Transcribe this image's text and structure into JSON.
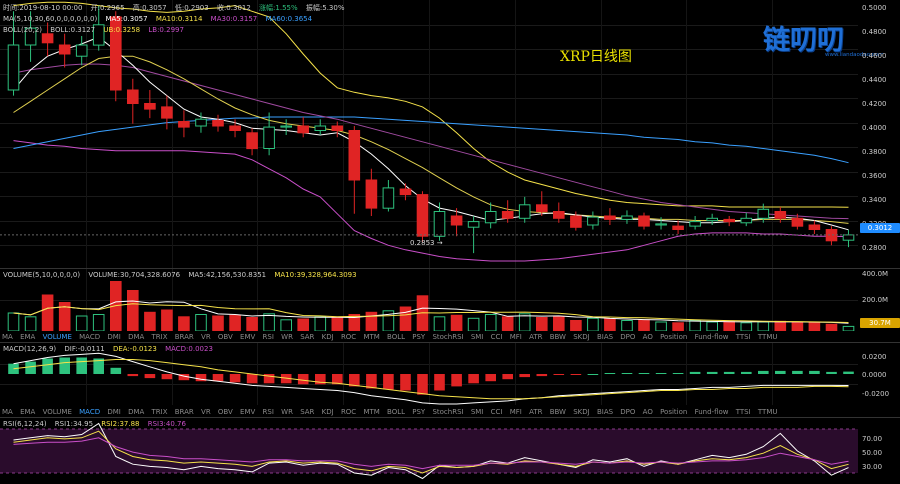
{
  "header": {
    "time": "时间:2019-08-10 00:00",
    "open": "开:0.2965",
    "high": "高:0.3057",
    "low": "低:0.2903",
    "close": "收:0.3012",
    "change_pct": "涨幅:1.55%",
    "amplitude": "振幅:5.30%"
  },
  "ma_line": {
    "label": "MA(5,10,30,60,0,0,0,0,0,0)",
    "ma5": "MA5:0.3057",
    "ma10": "MA10:0.3114",
    "ma30": "MA30:0.3157",
    "ma60": "MA60:0.3654"
  },
  "boll_line": {
    "label": "BOLL(20,2)",
    "boll": "BOLL:0.3127",
    "ub": "UB:0.3258",
    "lb": "LB:0.2997"
  },
  "chart_title": "XRP日线图",
  "logo": {
    "text": "链叨叨",
    "url": "www.liandaodao.com"
  },
  "price_axis": [
    "0.5000",
    "0.4800",
    "0.4600",
    "0.4400",
    "0.4200",
    "0.4000",
    "0.3800",
    "0.3600",
    "0.3400",
    "0.3200",
    "0.2800"
  ],
  "price_current": "0.3012",
  "low_marker": "0.2853 →",
  "volume_info": {
    "label": "VOLUME(5,10,0,0,0,0)",
    "volume": "VOLUME:30,704,328.6076",
    "ma5": "MA5:42,156,530.8351",
    "ma10": "MA10:39,328,964.3093"
  },
  "volume_axis": [
    "400.0M",
    "200.0M"
  ],
  "volume_current": "30.7M",
  "macd_info": {
    "label": "MACD(12,26,9)",
    "dif": "DIF:-0.0111",
    "dea": "DEA:-0.0123",
    "macd": "MACD:0.0023"
  },
  "macd_axis": [
    "0.0200",
    "0.0000",
    "-0.0200"
  ],
  "rsi_info": {
    "label": "RSI(6,12,24)",
    "rsi1": "RSI1:34.95",
    "rsi2": "RSI2:37.88",
    "rsi3": "RSI3:40.76"
  },
  "rsi_axis": [
    "70.00",
    "50.00",
    "30.00"
  ],
  "indicator_tabs_1": [
    "MA",
    "EMA",
    "VOLUME",
    "MACD",
    "DMI",
    "DMA",
    "TRIX",
    "BRAR",
    "VR",
    "OBV",
    "EMV",
    "RSI",
    "WR",
    "SAR",
    "KDJ",
    "ROC",
    "MTM",
    "BOLL",
    "PSY",
    "StochRSI",
    "SMI",
    "CCI",
    "MFI",
    "ATR",
    "BBW",
    "SKDJ",
    "BIAS",
    "DPO",
    "AO",
    "Position",
    "Fund-flow",
    "TTSI",
    "TTMU"
  ],
  "indicator_tabs_2": [
    "MA",
    "EMA",
    "VOLUME",
    "MACD",
    "DMI",
    "DMA",
    "TRIX",
    "BRAR",
    "VR",
    "OBV",
    "EMV",
    "RSI",
    "WR",
    "SAR",
    "KDJ",
    "ROC",
    "MTM",
    "BOLL",
    "PSY",
    "StochRSI",
    "SMI",
    "CCI",
    "MFI",
    "ATR",
    "BBW",
    "SKDJ",
    "BIAS",
    "DPO",
    "AO",
    "Position",
    "Fund-flow",
    "TTSI",
    "TTMU"
  ],
  "colors": {
    "up": "#2ec27e",
    "down": "#e02424",
    "ma5": "#ffffff",
    "ma10": "#f5e24a",
    "ma30": "#c94fc9",
    "ma60": "#3aa0ff",
    "current_badge": "#1f8cff",
    "volume_badge": "#d9a400"
  },
  "chart_data": {
    "type": "candlestick",
    "title": "XRP日线图",
    "ylim": [
      0.27,
      0.51
    ],
    "candles": [
      {
        "o": 0.43,
        "c": 0.47,
        "h": 0.5,
        "l": 0.425
      },
      {
        "o": 0.47,
        "c": 0.485,
        "h": 0.5,
        "l": 0.455
      },
      {
        "o": 0.48,
        "c": 0.472,
        "h": 0.49,
        "l": 0.46
      },
      {
        "o": 0.47,
        "c": 0.462,
        "h": 0.48,
        "l": 0.45
      },
      {
        "o": 0.46,
        "c": 0.47,
        "h": 0.478,
        "l": 0.452
      },
      {
        "o": 0.47,
        "c": 0.488,
        "h": 0.505,
        "l": 0.465
      },
      {
        "o": 0.495,
        "c": 0.43,
        "h": 0.5,
        "l": 0.42
      },
      {
        "o": 0.43,
        "c": 0.418,
        "h": 0.44,
        "l": 0.4
      },
      {
        "o": 0.418,
        "c": 0.413,
        "h": 0.43,
        "l": 0.405
      },
      {
        "o": 0.415,
        "c": 0.405,
        "h": 0.425,
        "l": 0.395
      },
      {
        "o": 0.402,
        "c": 0.397,
        "h": 0.412,
        "l": 0.388
      },
      {
        "o": 0.398,
        "c": 0.404,
        "h": 0.41,
        "l": 0.392
      },
      {
        "o": 0.403,
        "c": 0.398,
        "h": 0.408,
        "l": 0.393
      },
      {
        "o": 0.398,
        "c": 0.394,
        "h": 0.404,
        "l": 0.388
      },
      {
        "o": 0.392,
        "c": 0.378,
        "h": 0.396,
        "l": 0.372
      },
      {
        "o": 0.378,
        "c": 0.397,
        "h": 0.41,
        "l": 0.372
      },
      {
        "o": 0.397,
        "c": 0.398,
        "h": 0.404,
        "l": 0.39
      },
      {
        "o": 0.398,
        "c": 0.392,
        "h": 0.406,
        "l": 0.388
      },
      {
        "o": 0.394,
        "c": 0.398,
        "h": 0.404,
        "l": 0.39
      },
      {
        "o": 0.398,
        "c": 0.394,
        "h": 0.402,
        "l": 0.388
      },
      {
        "o": 0.394,
        "c": 0.35,
        "h": 0.398,
        "l": 0.32
      },
      {
        "o": 0.35,
        "c": 0.325,
        "h": 0.36,
        "l": 0.318
      },
      {
        "o": 0.325,
        "c": 0.343,
        "h": 0.35,
        "l": 0.322
      },
      {
        "o": 0.342,
        "c": 0.337,
        "h": 0.347,
        "l": 0.332
      },
      {
        "o": 0.337,
        "c": 0.3,
        "h": 0.34,
        "l": 0.295
      },
      {
        "o": 0.3,
        "c": 0.322,
        "h": 0.33,
        "l": 0.296
      },
      {
        "o": 0.318,
        "c": 0.31,
        "h": 0.325,
        "l": 0.3
      },
      {
        "o": 0.308,
        "c": 0.313,
        "h": 0.318,
        "l": 0.285
      },
      {
        "o": 0.312,
        "c": 0.322,
        "h": 0.33,
        "l": 0.307
      },
      {
        "o": 0.322,
        "c": 0.316,
        "h": 0.332,
        "l": 0.312
      },
      {
        "o": 0.316,
        "c": 0.328,
        "h": 0.335,
        "l": 0.312
      },
      {
        "o": 0.328,
        "c": 0.322,
        "h": 0.34,
        "l": 0.318
      },
      {
        "o": 0.322,
        "c": 0.316,
        "h": 0.33,
        "l": 0.312
      },
      {
        "o": 0.318,
        "c": 0.308,
        "h": 0.322,
        "l": 0.305
      },
      {
        "o": 0.31,
        "c": 0.317,
        "h": 0.322,
        "l": 0.306
      },
      {
        "o": 0.318,
        "c": 0.315,
        "h": 0.325,
        "l": 0.31
      },
      {
        "o": 0.315,
        "c": 0.318,
        "h": 0.323,
        "l": 0.311
      },
      {
        "o": 0.318,
        "c": 0.309,
        "h": 0.321,
        "l": 0.306
      },
      {
        "o": 0.31,
        "c": 0.311,
        "h": 0.317,
        "l": 0.306
      },
      {
        "o": 0.309,
        "c": 0.306,
        "h": 0.314,
        "l": 0.302
      },
      {
        "o": 0.309,
        "c": 0.313,
        "h": 0.318,
        "l": 0.306
      },
      {
        "o": 0.314,
        "c": 0.316,
        "h": 0.32,
        "l": 0.31
      },
      {
        "o": 0.315,
        "c": 0.313,
        "h": 0.318,
        "l": 0.309
      },
      {
        "o": 0.312,
        "c": 0.316,
        "h": 0.321,
        "l": 0.309
      },
      {
        "o": 0.316,
        "c": 0.324,
        "h": 0.329,
        "l": 0.312
      },
      {
        "o": 0.322,
        "c": 0.316,
        "h": 0.326,
        "l": 0.312
      },
      {
        "o": 0.316,
        "c": 0.309,
        "h": 0.32,
        "l": 0.306
      },
      {
        "o": 0.31,
        "c": 0.306,
        "h": 0.314,
        "l": 0.302
      },
      {
        "o": 0.306,
        "c": 0.296,
        "h": 0.309,
        "l": 0.292
      },
      {
        "o": 0.2965,
        "c": 0.3012,
        "h": 0.3057,
        "l": 0.2903
      }
    ],
    "ma5": [
      0.43,
      0.448,
      0.46,
      0.466,
      0.471,
      0.477,
      0.465,
      0.452,
      0.437,
      0.425,
      0.413,
      0.406,
      0.404,
      0.401,
      0.396,
      0.395,
      0.394,
      0.392,
      0.39,
      0.392,
      0.384,
      0.373,
      0.36,
      0.345,
      0.333,
      0.325,
      0.322,
      0.318,
      0.314,
      0.316,
      0.318,
      0.32,
      0.321,
      0.319,
      0.317,
      0.316,
      0.315,
      0.315,
      0.314,
      0.313,
      0.312,
      0.312,
      0.313,
      0.314,
      0.316,
      0.317,
      0.316,
      0.314,
      0.31,
      0.3057
    ],
    "ma10": [
      0.41,
      0.42,
      0.43,
      0.44,
      0.45,
      0.458,
      0.46,
      0.46,
      0.455,
      0.448,
      0.44,
      0.431,
      0.422,
      0.414,
      0.408,
      0.403,
      0.4,
      0.398,
      0.396,
      0.394,
      0.39,
      0.384,
      0.377,
      0.369,
      0.361,
      0.352,
      0.343,
      0.335,
      0.328,
      0.324,
      0.322,
      0.321,
      0.32,
      0.319,
      0.318,
      0.317,
      0.316,
      0.316,
      0.315,
      0.315,
      0.314,
      0.314,
      0.314,
      0.314,
      0.315,
      0.315,
      0.315,
      0.314,
      0.313,
      0.3114
    ],
    "ma30": [
      0.445,
      0.448,
      0.45,
      0.452,
      0.453,
      0.453,
      0.452,
      0.45,
      0.446,
      0.442,
      0.438,
      0.434,
      0.43,
      0.426,
      0.422,
      0.418,
      0.414,
      0.41,
      0.407,
      0.404,
      0.4,
      0.396,
      0.392,
      0.388,
      0.384,
      0.38,
      0.376,
      0.372,
      0.368,
      0.364,
      0.36,
      0.356,
      0.352,
      0.348,
      0.344,
      0.34,
      0.336,
      0.333,
      0.33,
      0.328,
      0.326,
      0.324,
      0.322,
      0.321,
      0.32,
      0.319,
      0.318,
      0.317,
      0.316,
      0.3157
    ],
    "ma60": [
      0.378,
      0.381,
      0.384,
      0.387,
      0.39,
      0.393,
      0.395,
      0.397,
      0.399,
      0.401,
      0.402,
      0.403,
      0.404,
      0.405,
      0.405,
      0.406,
      0.406,
      0.406,
      0.406,
      0.406,
      0.406,
      0.405,
      0.404,
      0.403,
      0.402,
      0.401,
      0.4,
      0.399,
      0.398,
      0.397,
      0.396,
      0.395,
      0.394,
      0.393,
      0.392,
      0.391,
      0.39,
      0.388,
      0.387,
      0.386,
      0.384,
      0.383,
      0.381,
      0.38,
      0.378,
      0.376,
      0.374,
      0.372,
      0.369,
      0.3654
    ],
    "bb_ub": [
      0.505,
      0.507,
      0.508,
      0.508,
      0.507,
      0.505,
      0.503,
      0.502,
      0.5,
      0.499,
      0.5,
      0.502,
      0.503,
      0.505,
      0.5,
      0.495,
      0.48,
      0.462,
      0.445,
      0.432,
      0.428,
      0.425,
      0.423,
      0.42,
      0.415,
      0.405,
      0.392,
      0.378,
      0.366,
      0.357,
      0.35,
      0.346,
      0.342,
      0.338,
      0.335,
      0.332,
      0.33,
      0.329,
      0.328,
      0.327,
      0.327,
      0.327,
      0.326,
      0.326,
      0.326,
      0.326,
      0.326,
      0.326,
      0.326,
      0.3258
    ],
    "bb_lb": [
      0.385,
      0.383,
      0.381,
      0.38,
      0.378,
      0.377,
      0.376,
      0.376,
      0.376,
      0.376,
      0.376,
      0.375,
      0.374,
      0.373,
      0.368,
      0.36,
      0.352,
      0.342,
      0.335,
      0.32,
      0.305,
      0.298,
      0.292,
      0.288,
      0.285,
      0.282,
      0.28,
      0.279,
      0.278,
      0.278,
      0.278,
      0.279,
      0.28,
      0.282,
      0.284,
      0.286,
      0.288,
      0.292,
      0.296,
      0.3,
      0.302,
      0.303,
      0.303,
      0.303,
      0.302,
      0.302,
      0.301,
      0.3,
      0.3,
      0.2997
    ],
    "volume": [
      120,
      95,
      240,
      190,
      100,
      110,
      330,
      270,
      125,
      140,
      95,
      110,
      100,
      105,
      90,
      115,
      75,
      80,
      95,
      90,
      110,
      125,
      135,
      160,
      235,
      95,
      105,
      85,
      110,
      95,
      115,
      90,
      95,
      70,
      85,
      80,
      70,
      75,
      60,
      55,
      70,
      60,
      65,
      55,
      60,
      65,
      60,
      58,
      45,
      30.7
    ],
    "macd_hist": [
      0.01,
      0.012,
      0.015,
      0.016,
      0.016,
      0.015,
      0.006,
      -0.002,
      -0.004,
      -0.005,
      -0.006,
      -0.007,
      -0.007,
      -0.008,
      -0.009,
      -0.009,
      -0.009,
      -0.01,
      -0.01,
      -0.01,
      -0.012,
      -0.014,
      -0.015,
      -0.016,
      -0.02,
      -0.016,
      -0.012,
      -0.009,
      -0.007,
      -0.005,
      -0.003,
      -0.002,
      -0.001,
      -0.001,
      0.0,
      0.001,
      0.001,
      0.001,
      0.001,
      0.001,
      0.002,
      0.002,
      0.002,
      0.002,
      0.003,
      0.003,
      0.003,
      0.003,
      0.002,
      0.0023
    ],
    "macd_dif": [
      0.01,
      0.013,
      0.016,
      0.018,
      0.019,
      0.02,
      0.017,
      0.012,
      0.007,
      0.002,
      -0.002,
      -0.005,
      -0.007,
      -0.009,
      -0.011,
      -0.012,
      -0.013,
      -0.014,
      -0.015,
      -0.016,
      -0.018,
      -0.021,
      -0.023,
      -0.025,
      -0.028,
      -0.029,
      -0.029,
      -0.028,
      -0.027,
      -0.026,
      -0.024,
      -0.023,
      -0.021,
      -0.02,
      -0.019,
      -0.018,
      -0.017,
      -0.016,
      -0.015,
      -0.015,
      -0.014,
      -0.013,
      -0.013,
      -0.012,
      -0.011,
      -0.011,
      -0.011,
      -0.011,
      -0.011,
      -0.0111
    ],
    "macd_dea": [
      0.005,
      0.007,
      0.009,
      0.011,
      0.012,
      0.013,
      0.014,
      0.014,
      0.013,
      0.011,
      0.009,
      0.007,
      0.004,
      0.002,
      0.0,
      -0.002,
      -0.004,
      -0.006,
      -0.008,
      -0.009,
      -0.011,
      -0.013,
      -0.015,
      -0.017,
      -0.019,
      -0.021,
      -0.022,
      -0.023,
      -0.024,
      -0.024,
      -0.024,
      -0.023,
      -0.022,
      -0.021,
      -0.02,
      -0.019,
      -0.018,
      -0.017,
      -0.016,
      -0.016,
      -0.015,
      -0.015,
      -0.014,
      -0.014,
      -0.013,
      -0.013,
      -0.013,
      -0.012,
      -0.012,
      -0.0123
    ],
    "rsi1": [
      60,
      62,
      64,
      63,
      65,
      75,
      45,
      38,
      36,
      35,
      33,
      36,
      34,
      33,
      31,
      39,
      40,
      37,
      39,
      38,
      30,
      28,
      35,
      33,
      25,
      37,
      35,
      36,
      41,
      39,
      44,
      41,
      38,
      35,
      42,
      40,
      43,
      36,
      41,
      38,
      42,
      46,
      44,
      47,
      54,
      66,
      50,
      41,
      28,
      34.95
    ],
    "rsi2": [
      58,
      60,
      62,
      61,
      62,
      68,
      52,
      45,
      42,
      41,
      39,
      40,
      39,
      38,
      36,
      40,
      41,
      39,
      40,
      39,
      34,
      32,
      36,
      35,
      30,
      36,
      35,
      36,
      39,
      38,
      41,
      40,
      38,
      36,
      40,
      39,
      41,
      38,
      40,
      38,
      41,
      43,
      42,
      44,
      48,
      55,
      47,
      42,
      34,
      37.88
    ],
    "rsi3": [
      56,
      57,
      58,
      58,
      59,
      62,
      54,
      49,
      46,
      45,
      43,
      43,
      42,
      41,
      40,
      42,
      42,
      41,
      41,
      41,
      38,
      36,
      38,
      37,
      34,
      37,
      37,
      37,
      39,
      39,
      40,
      40,
      39,
      38,
      40,
      39,
      40,
      39,
      40,
      39,
      40,
      41,
      41,
      42,
      44,
      48,
      45,
      42,
      38,
      40.76
    ],
    "volume_ylim": [
      0,
      400
    ],
    "macd_ylim": [
      -0.03,
      0.03
    ],
    "rsi_ylim": [
      20,
      80
    ]
  }
}
